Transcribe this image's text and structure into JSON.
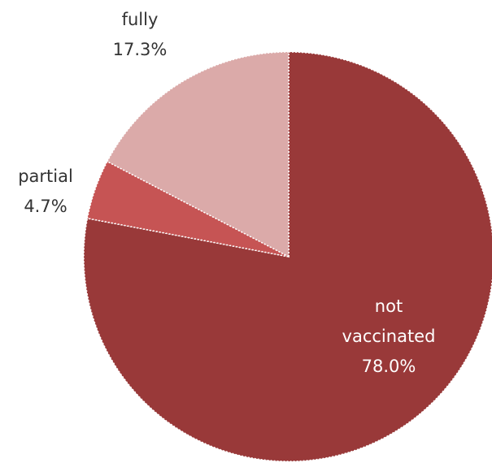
{
  "chart_data": {
    "type": "pie",
    "title": "",
    "start_angle_deg": 0,
    "direction": "clockwise",
    "slices": [
      {
        "key": "not-vaccinated",
        "lines": [
          "not",
          "vaccinated"
        ],
        "value_label": "78.0%",
        "value": 78.0,
        "color": "#993939",
        "label_color": "#ffffff",
        "label_position": "inside"
      },
      {
        "key": "partial",
        "lines": [
          "partial"
        ],
        "value_label": "4.7%",
        "value": 4.7,
        "color": "#c65454",
        "label_color": "#333333",
        "label_position": "outside"
      },
      {
        "key": "fully",
        "lines": [
          "fully"
        ],
        "value_label": "17.3%",
        "value": 17.3,
        "color": "#dbaaa9",
        "label_color": "#333333",
        "label_position": "outside"
      }
    ]
  }
}
